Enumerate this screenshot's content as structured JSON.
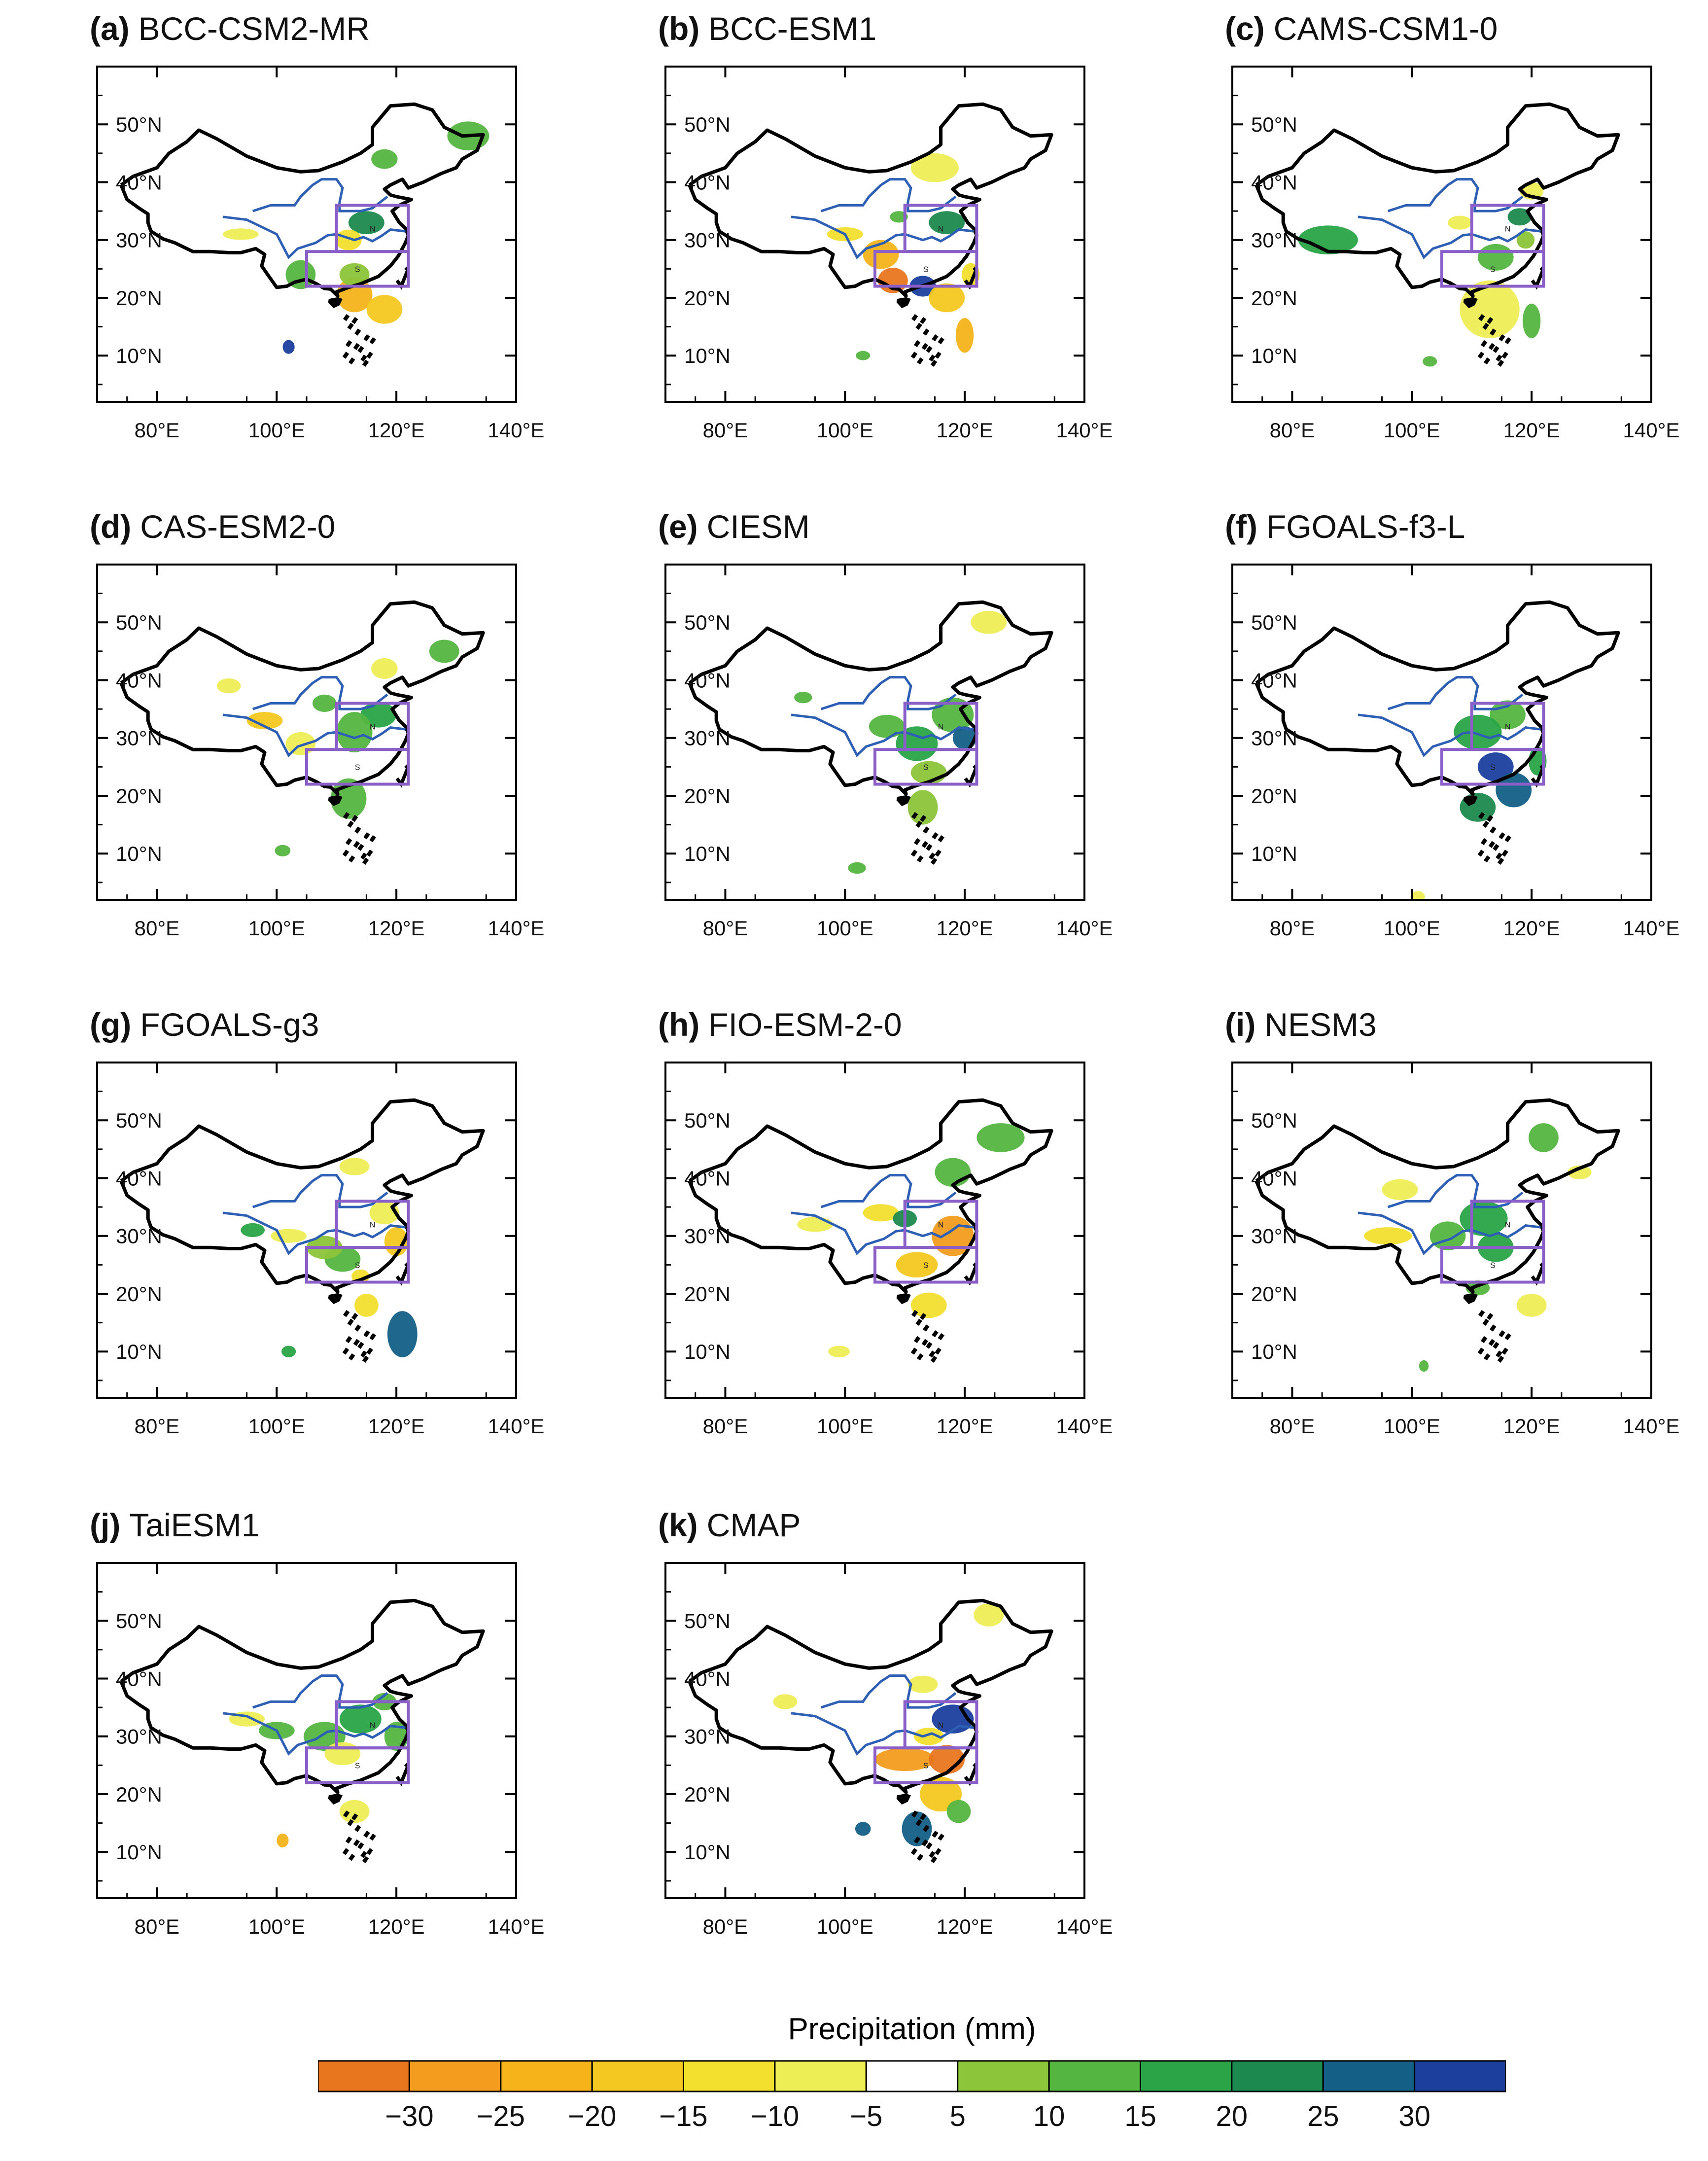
{
  "panels": [
    {
      "id": "a",
      "label": "(a)",
      "model": "BCC-CSM2-MR"
    },
    {
      "id": "b",
      "label": "(b)",
      "model": "BCC-ESM1"
    },
    {
      "id": "c",
      "label": "(c)",
      "model": "CAMS-CSM1-0"
    },
    {
      "id": "d",
      "label": "(d)",
      "model": "CAS-ESM2-0"
    },
    {
      "id": "e",
      "label": "(e)",
      "model": "CIESM"
    },
    {
      "id": "f",
      "label": "(f)",
      "model": "FGOALS-f3-L"
    },
    {
      "id": "g",
      "label": "(g)",
      "model": "FGOALS-g3"
    },
    {
      "id": "h",
      "label": "(h)",
      "model": "FIO-ESM-2-0"
    },
    {
      "id": "i",
      "label": "(i)",
      "model": "NESM3"
    },
    {
      "id": "j",
      "label": "(j)",
      "model": "TaiESM1"
    },
    {
      "id": "k",
      "label": "(k)",
      "model": "CMAP"
    }
  ],
  "axes": {
    "x_ticks": [
      "80°E",
      "100°E",
      "120°E",
      "140°E"
    ],
    "y_ticks": [
      "50°N",
      "40°N",
      "30°N",
      "20°N",
      "10°N"
    ],
    "x_range": [
      70,
      140
    ],
    "y_range": [
      2,
      60
    ]
  },
  "colorbar": {
    "title": "Precipitation (mm)",
    "labels": [
      "−30",
      "−25",
      "−20",
      "−15",
      "−10",
      "−5",
      "5",
      "10",
      "15",
      "20",
      "25",
      "30"
    ],
    "colors": [
      "#e8761f",
      "#f39c1d",
      "#f6b31a",
      "#f4c820",
      "#f2df2e",
      "#eded55",
      "#ffffff",
      "#8cc43a",
      "#55b541",
      "#2aa447",
      "#1c8a4e",
      "#135f86",
      "#1c3f9e"
    ]
  },
  "box_labels": [
    "N",
    "S"
  ]
}
